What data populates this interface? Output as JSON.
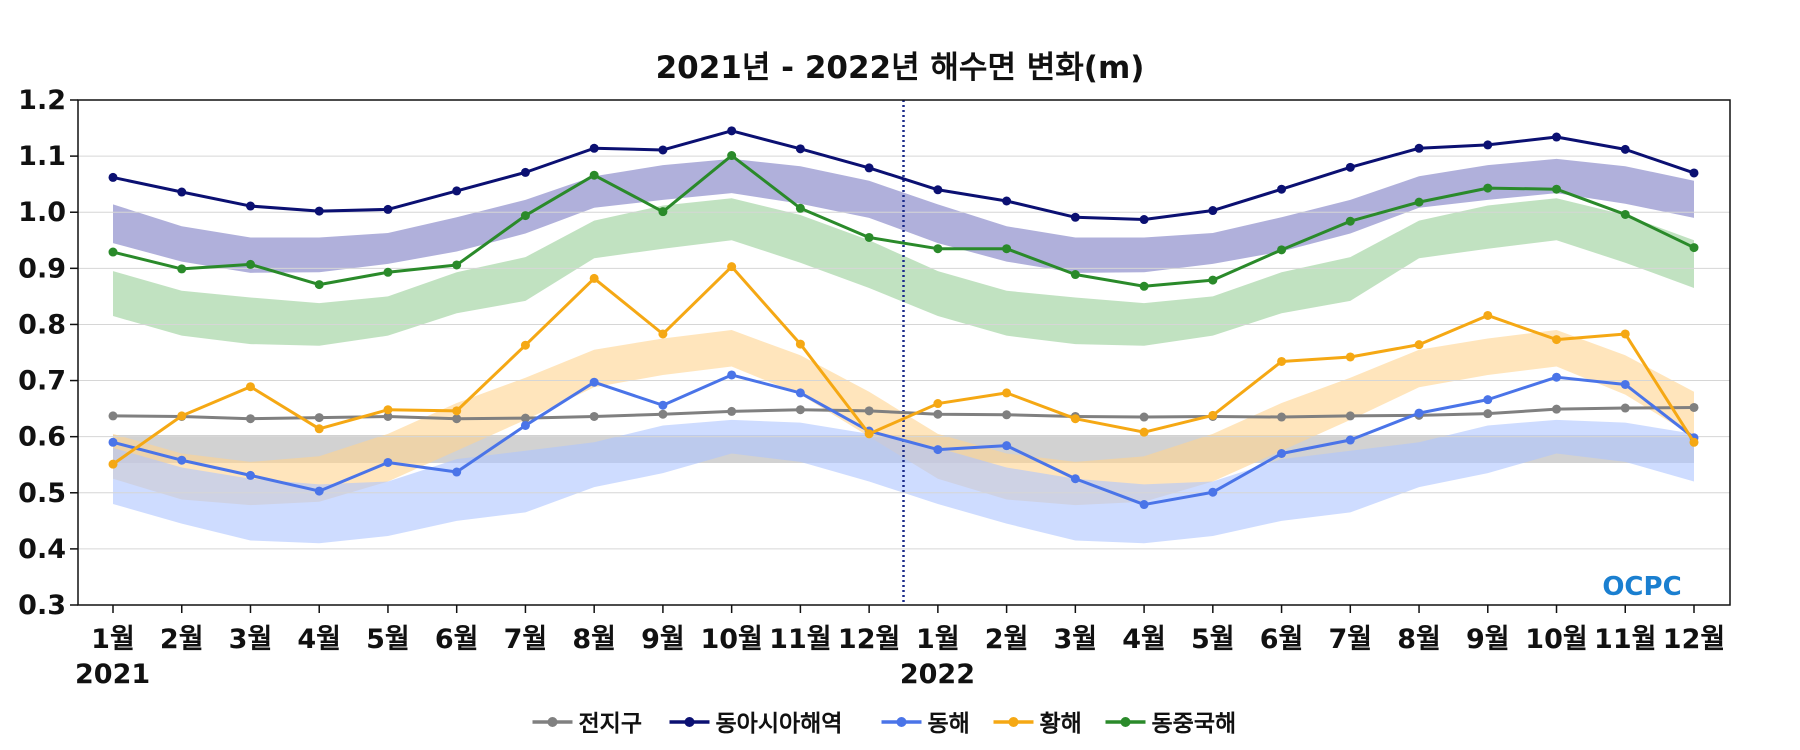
{
  "chart_data": {
    "type": "line",
    "title": "2021년 - 2022년 해수면 변화(m)",
    "ylim": [
      0.3,
      1.2
    ],
    "y_ticks": [
      "0.3",
      "0.4",
      "0.5",
      "0.6",
      "0.7",
      "0.8",
      "0.9",
      "1.0",
      "1.1",
      "1.2"
    ],
    "y_tick_values": [
      0.3,
      0.4,
      0.5,
      0.6,
      0.7,
      0.8,
      0.9,
      1.0,
      1.1,
      1.2
    ],
    "categories": [
      "1월",
      "2월",
      "3월",
      "4월",
      "5월",
      "6월",
      "7월",
      "8월",
      "9월",
      "10월",
      "11월",
      "12월",
      "1월",
      "2월",
      "3월",
      "4월",
      "5월",
      "6월",
      "7월",
      "8월",
      "9월",
      "10월",
      "11월",
      "12월"
    ],
    "year_labels": [
      {
        "label": "2021",
        "start_index": 0
      },
      {
        "label": "2022",
        "start_index": 12
      }
    ],
    "grid": true,
    "legend_position": "bottom-center",
    "year_divider_between": [
      11,
      12
    ],
    "series": [
      {
        "name": "전지구",
        "color": "#808080",
        "values": [
          0.637,
          0.636,
          0.632,
          0.634,
          0.636,
          0.632,
          0.633,
          0.636,
          0.64,
          0.645,
          0.648,
          0.646,
          0.64,
          0.639,
          0.636,
          0.635,
          0.636,
          0.635,
          0.637,
          0.638,
          0.641,
          0.649,
          0.651,
          0.652
        ]
      },
      {
        "name": "동아시아해역",
        "color": "#0b1072",
        "values": [
          1.062,
          1.036,
          1.011,
          1.002,
          1.005,
          1.038,
          1.071,
          1.114,
          1.111,
          1.145,
          1.113,
          1.079,
          1.04,
          1.02,
          0.991,
          0.987,
          1.003,
          1.041,
          1.08,
          1.114,
          1.12,
          1.134,
          1.112,
          1.07
        ]
      },
      {
        "name": "동해",
        "color": "#4a74e8",
        "values": [
          0.59,
          0.558,
          0.531,
          0.503,
          0.554,
          0.537,
          0.62,
          0.697,
          0.656,
          0.71,
          0.678,
          0.61,
          0.577,
          0.584,
          0.525,
          0.479,
          0.501,
          0.57,
          0.594,
          0.642,
          0.666,
          0.706,
          0.693,
          0.598
        ]
      },
      {
        "name": "황해",
        "color": "#f5a814",
        "values": [
          0.551,
          0.637,
          0.689,
          0.614,
          0.648,
          0.646,
          0.763,
          0.882,
          0.783,
          0.903,
          0.765,
          0.605,
          0.659,
          0.678,
          0.632,
          0.608,
          0.638,
          0.734,
          0.742,
          0.764,
          0.816,
          0.773,
          0.783,
          0.59
        ]
      },
      {
        "name": "동중국해",
        "color": "#2a8a2a",
        "values": [
          0.929,
          0.899,
          0.907,
          0.871,
          0.893,
          0.906,
          0.994,
          1.066,
          1.001,
          1.101,
          1.007,
          0.955,
          0.935,
          0.935,
          0.889,
          0.868,
          0.879,
          0.933,
          0.984,
          1.018,
          1.043,
          1.041,
          0.996,
          0.937
        ]
      }
    ],
    "bands": [
      {
        "color": "#8e8ecc",
        "opacity": 0.7,
        "lower": [
          0.945,
          0.912,
          0.892,
          0.893,
          0.908,
          0.93,
          0.962,
          1.008,
          1.022,
          1.034,
          1.015,
          0.99,
          0.945,
          0.912,
          0.892,
          0.893,
          0.908,
          0.93,
          0.962,
          1.008,
          1.022,
          1.034,
          1.015,
          0.99
        ],
        "upper": [
          1.014,
          0.975,
          0.955,
          0.955,
          0.963,
          0.991,
          1.022,
          1.064,
          1.084,
          1.095,
          1.082,
          1.056,
          1.014,
          0.975,
          0.955,
          0.955,
          0.963,
          0.991,
          1.022,
          1.064,
          1.084,
          1.095,
          1.082,
          1.056
        ]
      },
      {
        "color": "#9fd39f",
        "opacity": 0.65,
        "lower": [
          0.815,
          0.78,
          0.765,
          0.762,
          0.78,
          0.82,
          0.842,
          0.918,
          0.935,
          0.95,
          0.91,
          0.865,
          0.815,
          0.78,
          0.765,
          0.762,
          0.78,
          0.82,
          0.842,
          0.918,
          0.935,
          0.95,
          0.91,
          0.865
        ],
        "upper": [
          0.895,
          0.86,
          0.848,
          0.838,
          0.85,
          0.893,
          0.92,
          0.985,
          1.012,
          1.025,
          0.995,
          0.95,
          0.895,
          0.86,
          0.848,
          0.838,
          0.85,
          0.893,
          0.92,
          0.985,
          1.012,
          1.025,
          0.995,
          0.95
        ]
      },
      {
        "color": "#bfbfbf",
        "opacity": 0.7,
        "lower": [
          0.553,
          0.553,
          0.553,
          0.553,
          0.553,
          0.553,
          0.553,
          0.553,
          0.553,
          0.553,
          0.553,
          0.553,
          0.553,
          0.553,
          0.553,
          0.553,
          0.553,
          0.553,
          0.553,
          0.553,
          0.553,
          0.553,
          0.553,
          0.553
        ],
        "upper": [
          0.603,
          0.603,
          0.603,
          0.603,
          0.603,
          0.603,
          0.603,
          0.603,
          0.603,
          0.603,
          0.603,
          0.603,
          0.603,
          0.603,
          0.603,
          0.603,
          0.603,
          0.603,
          0.603,
          0.603,
          0.603,
          0.603,
          0.603,
          0.603
        ]
      },
      {
        "color": "#ffd48f",
        "opacity": 0.6,
        "lower": [
          0.525,
          0.488,
          0.478,
          0.484,
          0.52,
          0.575,
          0.63,
          0.688,
          0.71,
          0.725,
          0.675,
          0.6,
          0.525,
          0.488,
          0.478,
          0.484,
          0.52,
          0.575,
          0.63,
          0.688,
          0.71,
          0.725,
          0.675,
          0.6
        ],
        "upper": [
          0.605,
          0.57,
          0.555,
          0.565,
          0.605,
          0.66,
          0.705,
          0.755,
          0.775,
          0.79,
          0.745,
          0.68,
          0.605,
          0.57,
          0.555,
          0.565,
          0.605,
          0.66,
          0.705,
          0.755,
          0.775,
          0.79,
          0.745,
          0.68
        ]
      },
      {
        "color": "#aec4ff",
        "opacity": 0.6,
        "lower": [
          0.48,
          0.445,
          0.415,
          0.41,
          0.423,
          0.45,
          0.465,
          0.51,
          0.535,
          0.57,
          0.555,
          0.52,
          0.48,
          0.445,
          0.415,
          0.41,
          0.423,
          0.45,
          0.465,
          0.51,
          0.535,
          0.57,
          0.555,
          0.52
        ],
        "upper": [
          0.58,
          0.545,
          0.525,
          0.515,
          0.52,
          0.56,
          0.575,
          0.59,
          0.62,
          0.63,
          0.625,
          0.605,
          0.58,
          0.545,
          0.525,
          0.515,
          0.52,
          0.56,
          0.575,
          0.59,
          0.62,
          0.63,
          0.625,
          0.605
        ]
      }
    ]
  },
  "logo": {
    "text": "OCPC",
    "color": "#1a7fd0"
  }
}
